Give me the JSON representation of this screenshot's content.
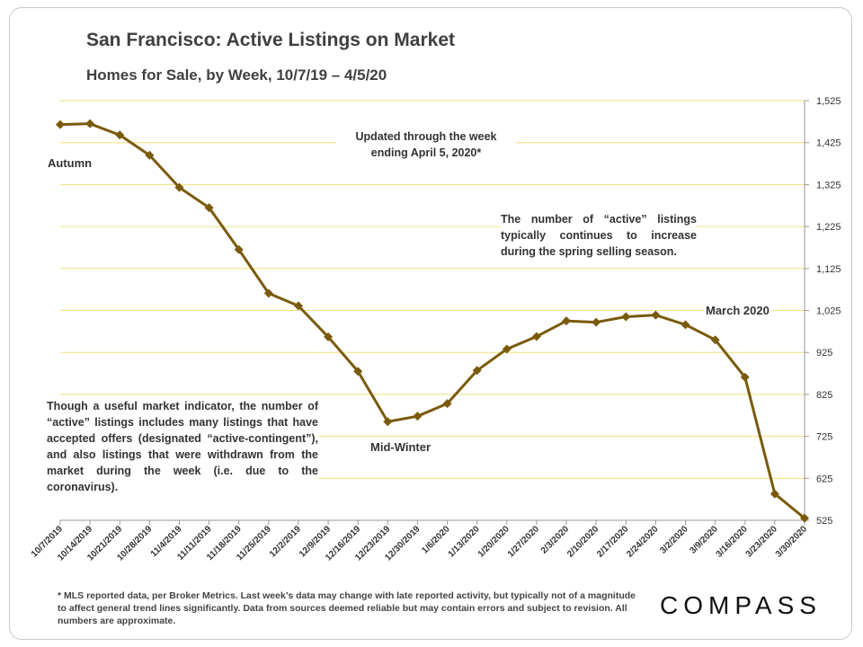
{
  "title": "San Francisco: Active Listings on Market",
  "subtitle": "Homes for Sale, by Week, 10/7/19 – 4/5/20",
  "annotations": {
    "updated": "Updated through the week ending April 5, 2020*",
    "spring": "The number of “active” listings typically continues to increase during the spring selling season.",
    "caveat": "Though a useful market indicator, the number of “active” listings includes many listings that have accepted offers (designated “active-contingent”), and also listings that were withdrawn from the market during the week (i.e. due to the coronavirus).",
    "autumn": "Autumn",
    "midwinter": "Mid-Winter",
    "march": "March 2020"
  },
  "footnote": "* MLS reported data, per Broker Metrics. Last week’s data may change with late reported activity, but typically not of a magnitude to affect general trend lines significantly. Data from sources deemed reliable but may contain errors and subject to revision. All numbers are approximate.",
  "brand": "COMPASS",
  "chart_data": {
    "type": "line",
    "categories": [
      "10/7/2019",
      "10/14/2019",
      "10/21/2019",
      "10/28/2019",
      "11/4/2019",
      "11/11/2019",
      "11/18/2019",
      "11/25/2019",
      "12/2/2019",
      "12/9/2019",
      "12/16/2019",
      "12/23/2019",
      "12/30/2019",
      "1/6/2020",
      "1/13/2020",
      "1/20/2020",
      "1/27/2020",
      "2/3/2020",
      "2/10/2020",
      "2/17/2020",
      "2/24/2020",
      "3/2/2020",
      "3/9/2020",
      "3/16/2020",
      "3/23/2020",
      "3/30/2020"
    ],
    "series": [
      {
        "values": [
          1468,
          1470,
          1443,
          1395,
          1318,
          1270,
          1170,
          1066,
          1036,
          962,
          880,
          760,
          773,
          803,
          882,
          933,
          963,
          1000,
          997,
          1010,
          1014,
          991,
          955,
          866,
          588,
          530
        ]
      }
    ],
    "yticks": [
      525,
      625,
      725,
      825,
      925,
      1025,
      1125,
      1225,
      1325,
      1425,
      1525
    ],
    "ylim": [
      525,
      1525
    ],
    "ytick_labels": [
      "525",
      "625",
      "725",
      "825",
      "925",
      "1,025",
      "1,125",
      "1,225",
      "1,325",
      "1,425",
      "1,525"
    ],
    "y_axis_side": "right",
    "grid": true,
    "legend": false,
    "colors": {
      "line": "#7a5a0b",
      "grid": "#f2e07a"
    }
  }
}
